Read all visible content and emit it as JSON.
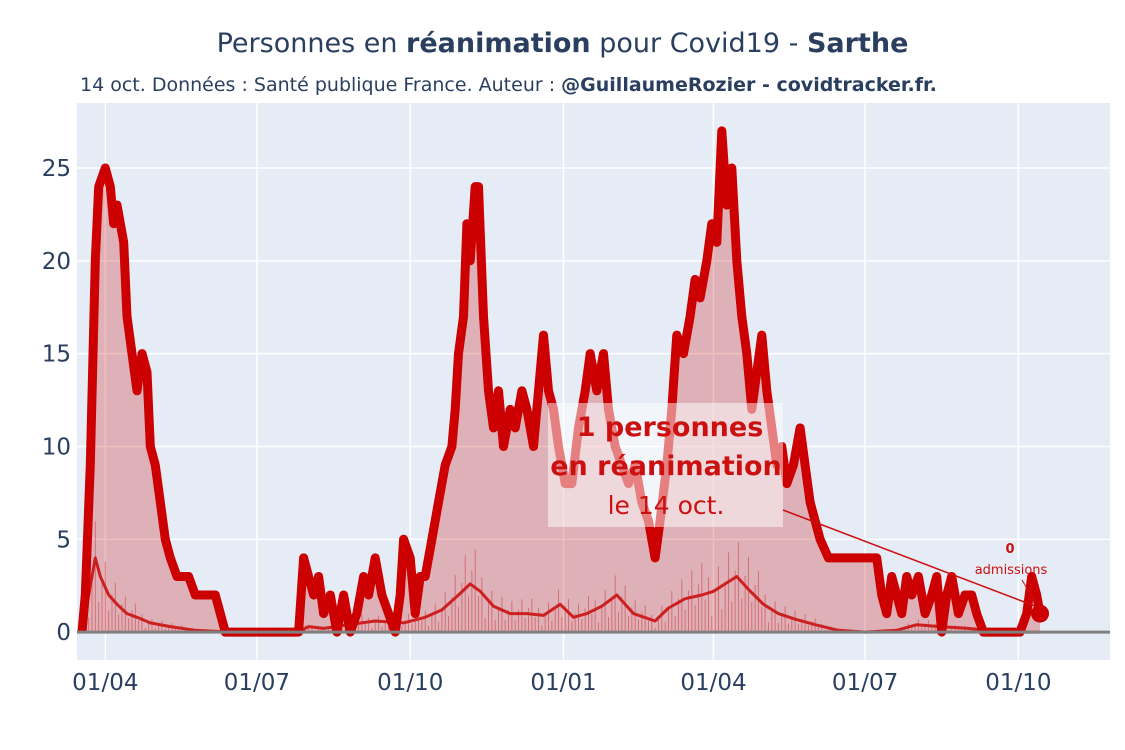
{
  "header": {
    "title_pre": "Personnes en ",
    "title_bold1": "réanimation",
    "title_mid": " pour Covid19 - ",
    "title_bold2": "Sarthe",
    "subtitle_pre": "14 oct. Données : Santé publique France. Auteur : ",
    "subtitle_bold": "@GuillaumeRozier - covidtracker.fr."
  },
  "annotation": {
    "line1": "1 personnes",
    "line2": "en réanimation",
    "line3": "le 14 oct.",
    "admissions_value": "0",
    "admissions_label": "admissions"
  },
  "colors": {
    "plot_bg": "#e5ecf6",
    "main_line": "#cc0000",
    "fill": "rgba(204,0,0,0.25)",
    "text": "#2a3f5f"
  },
  "chart_data": {
    "type": "area",
    "x_start": "2020-03-18",
    "x_end": "2021-10-14",
    "xticks": [
      {
        "date": "2020-04-01",
        "label": "01/04"
      },
      {
        "date": "2020-07-01",
        "label": "01/07"
      },
      {
        "date": "2020-10-01",
        "label": "01/10"
      },
      {
        "date": "2021-01-01",
        "label": "01/01"
      },
      {
        "date": "2021-04-01",
        "label": "01/04"
      },
      {
        "date": "2021-07-01",
        "label": "01/07"
      },
      {
        "date": "2021-10-01",
        "label": "01/10"
      }
    ],
    "xlim": [
      "2020-03-15",
      "2021-11-25"
    ],
    "ylim": [
      -1.5,
      28.5
    ],
    "yticks": [
      0,
      5,
      10,
      15,
      20,
      25
    ],
    "grid": true,
    "series": [
      {
        "role": "reanimation",
        "points": [
          [
            "2020-03-18",
            0
          ],
          [
            "2020-03-20",
            2
          ],
          [
            "2020-03-23",
            9
          ],
          [
            "2020-03-26",
            20
          ],
          [
            "2020-03-28",
            24
          ],
          [
            "2020-04-01",
            25
          ],
          [
            "2020-04-04",
            24
          ],
          [
            "2020-04-06",
            22
          ],
          [
            "2020-04-08",
            23
          ],
          [
            "2020-04-12",
            21
          ],
          [
            "2020-04-14",
            17
          ],
          [
            "2020-04-17",
            15
          ],
          [
            "2020-04-20",
            13
          ],
          [
            "2020-04-23",
            15
          ],
          [
            "2020-04-26",
            14
          ],
          [
            "2020-04-28",
            10
          ],
          [
            "2020-05-01",
            9
          ],
          [
            "2020-05-04",
            7
          ],
          [
            "2020-05-07",
            5
          ],
          [
            "2020-05-10",
            4
          ],
          [
            "2020-05-14",
            3
          ],
          [
            "2020-05-21",
            3
          ],
          [
            "2020-05-25",
            2
          ],
          [
            "2020-06-06",
            2
          ],
          [
            "2020-06-09",
            1
          ],
          [
            "2020-06-12",
            0
          ],
          [
            "2020-07-26",
            0
          ],
          [
            "2020-07-29",
            4
          ],
          [
            "2020-08-01",
            3
          ],
          [
            "2020-08-04",
            2
          ],
          [
            "2020-08-07",
            3
          ],
          [
            "2020-08-10",
            1
          ],
          [
            "2020-08-14",
            2
          ],
          [
            "2020-08-18",
            0
          ],
          [
            "2020-08-22",
            2
          ],
          [
            "2020-08-26",
            0
          ],
          [
            "2020-08-30",
            1
          ],
          [
            "2020-09-03",
            3
          ],
          [
            "2020-09-06",
            2
          ],
          [
            "2020-09-10",
            4
          ],
          [
            "2020-09-14",
            2
          ],
          [
            "2020-09-18",
            1
          ],
          [
            "2020-09-22",
            0
          ],
          [
            "2020-09-25",
            2
          ],
          [
            "2020-09-27",
            5
          ],
          [
            "2020-10-01",
            4
          ],
          [
            "2020-10-04",
            1
          ],
          [
            "2020-10-07",
            3
          ],
          [
            "2020-10-10",
            3
          ],
          [
            "2020-10-14",
            5
          ],
          [
            "2020-10-18",
            7
          ],
          [
            "2020-10-22",
            9
          ],
          [
            "2020-10-26",
            10
          ],
          [
            "2020-10-28",
            12
          ],
          [
            "2020-10-30",
            15
          ],
          [
            "2020-11-02",
            17
          ],
          [
            "2020-11-04",
            22
          ],
          [
            "2020-11-06",
            20
          ],
          [
            "2020-11-09",
            24
          ],
          [
            "2020-11-11",
            24
          ],
          [
            "2020-11-14",
            17
          ],
          [
            "2020-11-17",
            13
          ],
          [
            "2020-11-20",
            11
          ],
          [
            "2020-11-23",
            13
          ],
          [
            "2020-11-26",
            10
          ],
          [
            "2020-11-30",
            12
          ],
          [
            "2020-12-03",
            11
          ],
          [
            "2020-12-07",
            13
          ],
          [
            "2020-12-10",
            12
          ],
          [
            "2020-12-14",
            10
          ],
          [
            "2020-12-17",
            13
          ],
          [
            "2020-12-20",
            16
          ],
          [
            "2020-12-23",
            13
          ],
          [
            "2020-12-26",
            12
          ],
          [
            "2020-12-29",
            10
          ],
          [
            "2021-01-02",
            8
          ],
          [
            "2021-01-06",
            8
          ],
          [
            "2021-01-10",
            11
          ],
          [
            "2021-01-14",
            13
          ],
          [
            "2021-01-17",
            15
          ],
          [
            "2021-01-21",
            13
          ],
          [
            "2021-01-25",
            15
          ],
          [
            "2021-01-28",
            12
          ],
          [
            "2021-02-01",
            10
          ],
          [
            "2021-02-05",
            9
          ],
          [
            "2021-02-09",
            8
          ],
          [
            "2021-02-13",
            9
          ],
          [
            "2021-02-17",
            7
          ],
          [
            "2021-02-21",
            6
          ],
          [
            "2021-02-25",
            4
          ],
          [
            "2021-02-28",
            6
          ],
          [
            "2021-03-04",
            9
          ],
          [
            "2021-03-07",
            12
          ],
          [
            "2021-03-10",
            16
          ],
          [
            "2021-03-14",
            15
          ],
          [
            "2021-03-18",
            17
          ],
          [
            "2021-03-21",
            19
          ],
          [
            "2021-03-24",
            18
          ],
          [
            "2021-03-28",
            20
          ],
          [
            "2021-03-31",
            22
          ],
          [
            "2021-04-03",
            21
          ],
          [
            "2021-04-06",
            27
          ],
          [
            "2021-04-09",
            23
          ],
          [
            "2021-04-12",
            25
          ],
          [
            "2021-04-15",
            20
          ],
          [
            "2021-04-18",
            17
          ],
          [
            "2021-04-21",
            15
          ],
          [
            "2021-04-24",
            12
          ],
          [
            "2021-04-27",
            14
          ],
          [
            "2021-04-30",
            16
          ],
          [
            "2021-05-03",
            13
          ],
          [
            "2021-05-06",
            11
          ],
          [
            "2021-05-09",
            9
          ],
          [
            "2021-05-12",
            10
          ],
          [
            "2021-05-15",
            8
          ],
          [
            "2021-05-19",
            9
          ],
          [
            "2021-05-23",
            11
          ],
          [
            "2021-05-26",
            9
          ],
          [
            "2021-05-29",
            7
          ],
          [
            "2021-06-01",
            6
          ],
          [
            "2021-06-04",
            5
          ],
          [
            "2021-06-09",
            4
          ],
          [
            "2021-06-14",
            4
          ],
          [
            "2021-06-20",
            4
          ],
          [
            "2021-06-26",
            4
          ],
          [
            "2021-07-04",
            4
          ],
          [
            "2021-07-08",
            4
          ],
          [
            "2021-07-11",
            2
          ],
          [
            "2021-07-14",
            1
          ],
          [
            "2021-07-17",
            3
          ],
          [
            "2021-07-20",
            2
          ],
          [
            "2021-07-23",
            1
          ],
          [
            "2021-07-26",
            3
          ],
          [
            "2021-07-29",
            2
          ],
          [
            "2021-08-02",
            3
          ],
          [
            "2021-08-06",
            1
          ],
          [
            "2021-08-10",
            2
          ],
          [
            "2021-08-13",
            3
          ],
          [
            "2021-08-16",
            0
          ],
          [
            "2021-08-19",
            2
          ],
          [
            "2021-08-22",
            3
          ],
          [
            "2021-08-26",
            1
          ],
          [
            "2021-08-30",
            2
          ],
          [
            "2021-09-03",
            2
          ],
          [
            "2021-09-06",
            1
          ],
          [
            "2021-09-10",
            0
          ],
          [
            "2021-09-24",
            0
          ],
          [
            "2021-09-28",
            0
          ],
          [
            "2021-10-02",
            0
          ],
          [
            "2021-10-06",
            1
          ],
          [
            "2021-10-09",
            3
          ],
          [
            "2021-10-12",
            2
          ],
          [
            "2021-10-14",
            1
          ]
        ]
      },
      {
        "role": "admissions_avg",
        "points": [
          [
            "2020-03-18",
            0
          ],
          [
            "2020-03-22",
            2
          ],
          [
            "2020-03-26",
            4
          ],
          [
            "2020-03-29",
            3
          ],
          [
            "2020-04-03",
            2
          ],
          [
            "2020-04-08",
            1.5
          ],
          [
            "2020-04-14",
            1
          ],
          [
            "2020-04-20",
            0.8
          ],
          [
            "2020-04-28",
            0.5
          ],
          [
            "2020-05-10",
            0.3
          ],
          [
            "2020-05-25",
            0.1
          ],
          [
            "2020-06-15",
            0
          ],
          [
            "2020-07-26",
            0
          ],
          [
            "2020-08-01",
            0.3
          ],
          [
            "2020-08-10",
            0.2
          ],
          [
            "2020-08-25",
            0.4
          ],
          [
            "2020-09-10",
            0.6
          ],
          [
            "2020-09-27",
            0.5
          ],
          [
            "2020-10-10",
            0.8
          ],
          [
            "2020-10-20",
            1.2
          ],
          [
            "2020-10-30",
            2.0
          ],
          [
            "2020-11-06",
            2.6
          ],
          [
            "2020-11-12",
            2.2
          ],
          [
            "2020-11-20",
            1.4
          ],
          [
            "2020-11-30",
            1.0
          ],
          [
            "2020-12-10",
            1.0
          ],
          [
            "2020-12-20",
            0.9
          ],
          [
            "2020-12-30",
            1.5
          ],
          [
            "2021-01-07",
            0.8
          ],
          [
            "2021-01-15",
            1.0
          ],
          [
            "2021-01-24",
            1.4
          ],
          [
            "2021-02-02",
            2.0
          ],
          [
            "2021-02-12",
            1.0
          ],
          [
            "2021-02-25",
            0.6
          ],
          [
            "2021-03-05",
            1.3
          ],
          [
            "2021-03-15",
            1.8
          ],
          [
            "2021-03-25",
            2.0
          ],
          [
            "2021-04-01",
            2.2
          ],
          [
            "2021-04-08",
            2.6
          ],
          [
            "2021-04-15",
            3.0
          ],
          [
            "2021-04-22",
            2.3
          ],
          [
            "2021-05-01",
            1.5
          ],
          [
            "2021-05-10",
            1.0
          ],
          [
            "2021-05-20",
            0.7
          ],
          [
            "2021-06-01",
            0.4
          ],
          [
            "2021-06-15",
            0.1
          ],
          [
            "2021-07-01",
            0
          ],
          [
            "2021-07-20",
            0.1
          ],
          [
            "2021-08-01",
            0.4
          ],
          [
            "2021-08-15",
            0.3
          ],
          [
            "2021-09-01",
            0.2
          ],
          [
            "2021-09-20",
            0
          ],
          [
            "2021-10-14",
            0
          ]
        ]
      }
    ]
  }
}
